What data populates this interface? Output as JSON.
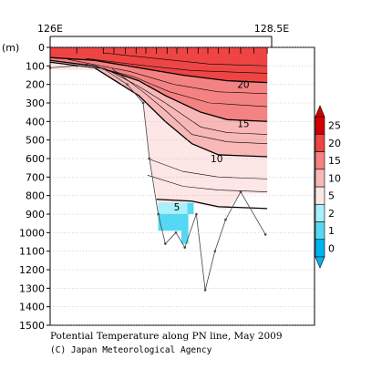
{
  "chart_data": {
    "type": "heatmap",
    "title": "Potential Temperature along PN line, May 2009",
    "credit": "(C) Japan Meteorological Agency",
    "ylabel": "(m)",
    "x_ticks": [
      {
        "label": "126E",
        "lon": 126.0
      },
      {
        "label": "128.5E",
        "lon": 128.5
      }
    ],
    "xlim": [
      126.0,
      128.5
    ],
    "ylim": [
      1500,
      0
    ],
    "y_ticks": [
      0,
      100,
      200,
      300,
      400,
      500,
      600,
      700,
      800,
      900,
      1000,
      1100,
      1200,
      1300,
      1400,
      1500
    ],
    "colorbar": {
      "levels": [
        "0",
        "1",
        "2",
        "5",
        "10",
        "15",
        "20",
        "25"
      ],
      "colors": [
        "#00b4f0",
        "#55d8f4",
        "#a8f0fa",
        "#fde6e6",
        "#f9b8b8",
        "#f58282",
        "#ee4444",
        "#d20000"
      ]
    },
    "contour_labels": [
      {
        "label": "20",
        "lon": 128.18,
        "depth": 200
      },
      {
        "label": "15",
        "lon": 128.18,
        "depth": 410
      },
      {
        "label": "10",
        "lon": 127.88,
        "depth": 600
      },
      {
        "label": "5",
        "lon": 127.43,
        "depth": 860
      }
    ],
    "bottom_profile": [
      {
        "lon": 126.0,
        "depth": 110
      },
      {
        "lon": 126.3,
        "depth": 100
      },
      {
        "lon": 126.6,
        "depth": 115
      },
      {
        "lon": 126.87,
        "depth": 200
      },
      {
        "lon": 127.05,
        "depth": 300
      },
      {
        "lon": 127.12,
        "depth": 600
      },
      {
        "lon": 127.22,
        "depth": 900
      },
      {
        "lon": 127.3,
        "depth": 1060
      },
      {
        "lon": 127.42,
        "depth": 1000
      },
      {
        "lon": 127.52,
        "depth": 1080
      },
      {
        "lon": 127.65,
        "depth": 900
      },
      {
        "lon": 127.75,
        "depth": 1310
      },
      {
        "lon": 127.86,
        "depth": 1100
      },
      {
        "lon": 127.98,
        "depth": 930
      },
      {
        "lon": 128.15,
        "depth": 780
      },
      {
        "lon": 128.43,
        "depth": 1010
      }
    ]
  }
}
